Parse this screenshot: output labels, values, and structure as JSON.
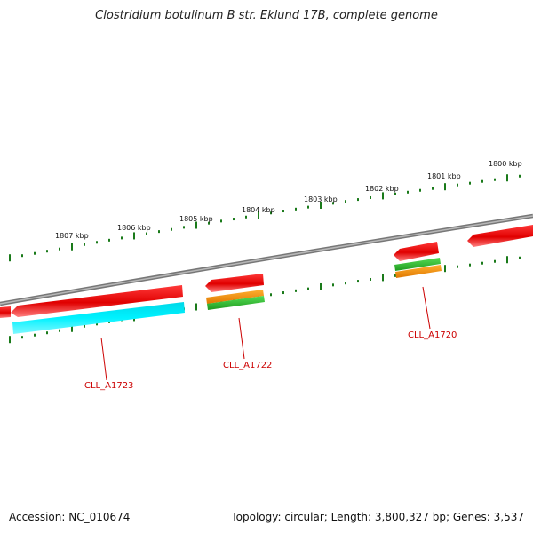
{
  "title": "Clostridium botulinum B str. Eklund 17B, complete genome",
  "footer": {
    "accession": "Accession: NC_010674",
    "summary": "Topology: circular; Length: 3,800,327 bp; Genes: 3,537"
  },
  "ruler": {
    "color": "#1a7a1a",
    "labels": [
      "1807 kbp",
      "1806 kbp",
      "1805 kbp",
      "1804 kbp",
      "1803 kbp",
      "1802 kbp",
      "1801 kbp",
      "1800 kbp"
    ]
  },
  "genes": [
    {
      "name": "CLL_A1723"
    },
    {
      "name": "CLL_A1722"
    },
    {
      "name": "CLL_A1720"
    }
  ],
  "colors": {
    "backbone": "#888888",
    "cds": "#ee0000",
    "cyan": "#00e5ee",
    "orange": "#ff9900",
    "green": "#33bb33",
    "label": "#cc0000"
  }
}
